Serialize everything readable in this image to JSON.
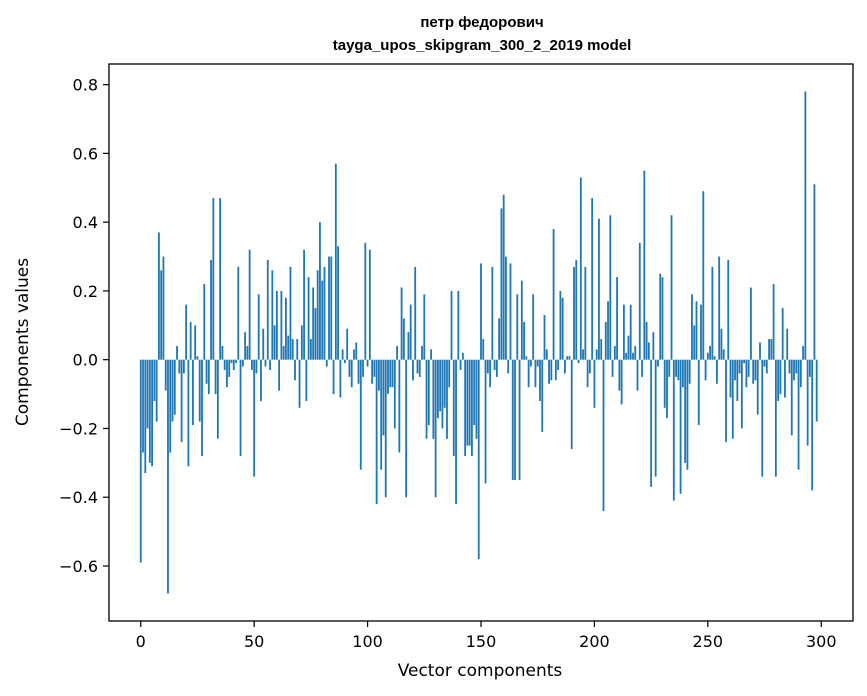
{
  "chart_data": {
    "type": "bar",
    "title": "петр федорович",
    "subtitle": "tayga_upos_skipgram_300_2_2019 model",
    "xlabel": "Vector components",
    "ylabel": "Components values",
    "xlim": [
      -14,
      314
    ],
    "ylim": [
      -0.76,
      0.86
    ],
    "xticks": [
      0,
      50,
      100,
      150,
      200,
      250,
      300
    ],
    "xtick_labels": [
      "0",
      "50",
      "100",
      "150",
      "200",
      "250",
      "300"
    ],
    "yticks": [
      -0.6,
      -0.4,
      -0.2,
      0.0,
      0.2,
      0.4,
      0.6,
      0.8
    ],
    "ytick_labels": [
      "−0.6",
      "−0.4",
      "−0.2",
      "0.0",
      "0.2",
      "0.4",
      "0.6",
      "0.8"
    ],
    "grid": false,
    "bar_color": "#1f77b4",
    "series": [
      {
        "values": [
          -0.59,
          -0.27,
          -0.33,
          -0.2,
          -0.3,
          -0.31,
          -0.12,
          -0.18,
          0.37,
          0.26,
          0.3,
          -0.09,
          -0.68,
          -0.27,
          -0.18,
          -0.16,
          0.04,
          -0.04,
          -0.24,
          -0.04,
          0.16,
          -0.31,
          0.11,
          -0.19,
          0.1,
          0.01,
          -0.18,
          -0.28,
          0.22,
          -0.07,
          -0.1,
          0.29,
          0.47,
          -0.1,
          -0.23,
          0.47,
          0.04,
          -0.03,
          -0.08,
          -0.05,
          -0.01,
          -0.03,
          -0.01,
          0.27,
          -0.28,
          -0.02,
          0.08,
          0.04,
          0.32,
          -0.03,
          -0.34,
          -0.04,
          0.19,
          -0.12,
          0.09,
          -0.02,
          0.29,
          -0.03,
          0.26,
          0.1,
          0.2,
          -0.09,
          0.2,
          0.04,
          0.18,
          0.07,
          0.27,
          0.06,
          -0.06,
          0.06,
          -0.14,
          0.1,
          0.32,
          -0.12,
          0.24,
          0.06,
          0.21,
          0.15,
          0.26,
          0.4,
          0.23,
          0.27,
          -0.02,
          0.3,
          0.3,
          -0.1,
          0.57,
          0.33,
          -0.11,
          0.03,
          -0.01,
          0.09,
          -0.05,
          -0.08,
          0.03,
          0.05,
          -0.07,
          -0.32,
          -0.05,
          0.34,
          -0.02,
          0.32,
          -0.07,
          -0.05,
          -0.42,
          -0.09,
          -0.32,
          -0.22,
          -0.4,
          -0.1,
          -0.08,
          -0.08,
          -0.2,
          0.04,
          -0.27,
          0.21,
          0.12,
          -0.4,
          0.08,
          0.16,
          -0.06,
          0.27,
          -0.04,
          -0.05,
          0.04,
          0.19,
          -0.23,
          -0.19,
          0.03,
          -0.23,
          -0.4,
          -0.17,
          -0.15,
          -0.2,
          -0.14,
          -0.23,
          -0.08,
          0.2,
          -0.28,
          -0.42,
          0.2,
          -0.03,
          0.02,
          -0.28,
          -0.25,
          -0.25,
          -0.28,
          -0.19,
          -0.23,
          -0.58,
          0.28,
          0.06,
          -0.36,
          -0.04,
          -0.08,
          0.27,
          -0.03,
          -0.05,
          0.12,
          0.44,
          0.48,
          0.3,
          -0.04,
          0.28,
          -0.35,
          -0.35,
          0.19,
          -0.35,
          0.23,
          0.11,
          0.01,
          -0.08,
          -0.02,
          0.19,
          -0.08,
          -0.02,
          -0.12,
          -0.21,
          0.13,
          0.03,
          -0.07,
          -0.06,
          0.38,
          -0.06,
          -0.03,
          0.2,
          0.18,
          -0.04,
          0.01,
          0.01,
          -0.26,
          0.27,
          0.29,
          -0.01,
          0.53,
          0.03,
          0.27,
          -0.08,
          -0.04,
          0.47,
          -0.14,
          0.03,
          0.41,
          0.06,
          -0.44,
          0.11,
          0.17,
          0.42,
          -0.05,
          0.04,
          0.24,
          -0.09,
          -0.13,
          0.16,
          0.02,
          0.07,
          0.16,
          0.02,
          0.04,
          -0.09,
          0.34,
          -0.05,
          0.55,
          0.11,
          0.05,
          -0.37,
          0.08,
          -0.34,
          -0.02,
          0.25,
          0.24,
          -0.14,
          -0.17,
          -0.05,
          0.42,
          -0.41,
          -0.05,
          -0.06,
          -0.39,
          -0.08,
          -0.3,
          -0.32,
          -0.07,
          0.19,
          0.1,
          0.17,
          -0.19,
          0.16,
          0.49,
          -0.06,
          0.02,
          0.04,
          0.27,
          0.01,
          -0.07,
          0.3,
          0.09,
          0.03,
          -0.24,
          0.29,
          -0.11,
          -0.23,
          -0.06,
          -0.12,
          -0.04,
          -0.2,
          -0.01,
          -0.08,
          -0.05,
          0.21,
          -0.07,
          -0.06,
          -0.16,
          0.05,
          -0.34,
          -0.02,
          -0.04,
          0.06,
          0.06,
          0.22,
          -0.34,
          -0.12,
          -0.1,
          0.15,
          -0.11,
          0.09,
          -0.04,
          -0.22,
          -0.06,
          -0.04,
          -0.32,
          -0.08,
          0.04,
          0.78,
          -0.25,
          -0.05,
          -0.38,
          0.51,
          -0.18
        ]
      }
    ]
  }
}
